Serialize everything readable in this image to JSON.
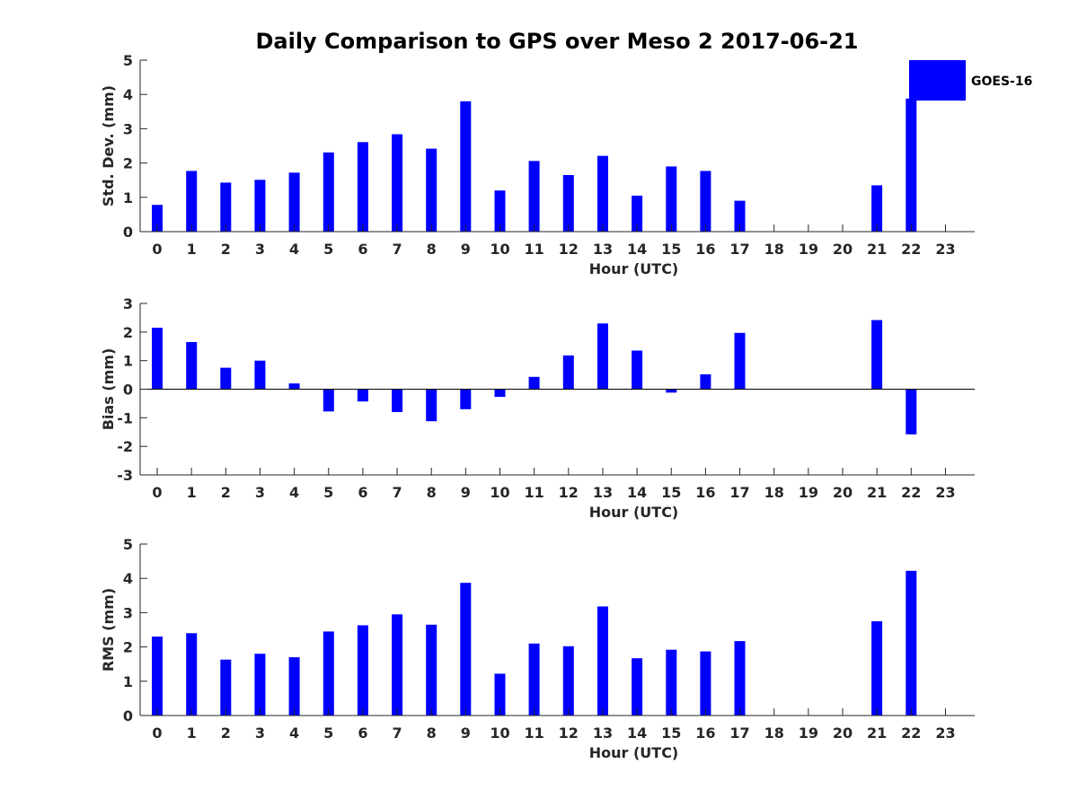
{
  "title": "Daily Comparison to GPS over Meso 2 2017-06-21",
  "legend": {
    "label": "GOES-16",
    "position": "top-right"
  },
  "colors": {
    "bar": "#0000ff",
    "axis": "#262626",
    "zero_line": "#000000"
  },
  "chart_data": [
    {
      "type": "bar",
      "xlabel": "Hour (UTC)",
      "ylabel": "Std. Dev. (mm)",
      "categories": [
        "0",
        "1",
        "2",
        "3",
        "4",
        "5",
        "6",
        "7",
        "8",
        "9",
        "10",
        "11",
        "12",
        "13",
        "14",
        "15",
        "16",
        "17",
        "18",
        "19",
        "20",
        "21",
        "22",
        "23"
      ],
      "ylim": [
        0,
        5
      ],
      "yticks": [
        0,
        1,
        2,
        3,
        4,
        5
      ],
      "series": [
        {
          "name": "GOES-16",
          "values": [
            0.78,
            1.77,
            1.43,
            1.51,
            1.72,
            2.31,
            2.61,
            2.84,
            2.42,
            3.8,
            1.2,
            2.06,
            1.65,
            2.21,
            1.05,
            1.9,
            1.77,
            0.9,
            null,
            null,
            null,
            1.35,
            3.88,
            null
          ]
        }
      ],
      "grid": false
    },
    {
      "type": "bar",
      "xlabel": "Hour (UTC)",
      "ylabel": "Bias (mm)",
      "categories": [
        "0",
        "1",
        "2",
        "3",
        "4",
        "5",
        "6",
        "7",
        "8",
        "9",
        "10",
        "11",
        "12",
        "13",
        "14",
        "15",
        "16",
        "17",
        "18",
        "19",
        "20",
        "21",
        "22",
        "23"
      ],
      "ylim": [
        -3,
        3
      ],
      "yticks": [
        -3,
        -2,
        -1,
        0,
        1,
        2,
        3
      ],
      "series": [
        {
          "name": "GOES-16",
          "values": [
            2.15,
            1.65,
            0.75,
            1.0,
            0.2,
            -0.78,
            -0.43,
            -0.8,
            -1.12,
            -0.7,
            -0.27,
            0.43,
            1.18,
            2.3,
            1.35,
            -0.12,
            0.52,
            1.97,
            null,
            null,
            null,
            2.42,
            -1.58,
            null
          ]
        }
      ],
      "grid": false
    },
    {
      "type": "bar",
      "xlabel": "Hour (UTC)",
      "ylabel": "RMS (mm)",
      "categories": [
        "0",
        "1",
        "2",
        "3",
        "4",
        "5",
        "6",
        "7",
        "8",
        "9",
        "10",
        "11",
        "12",
        "13",
        "14",
        "15",
        "16",
        "17",
        "18",
        "19",
        "20",
        "21",
        "22",
        "23"
      ],
      "ylim": [
        0,
        5
      ],
      "yticks": [
        0,
        1,
        2,
        3,
        4,
        5
      ],
      "series": [
        {
          "name": "GOES-16",
          "values": [
            2.3,
            2.4,
            1.63,
            1.8,
            1.7,
            2.45,
            2.63,
            2.95,
            2.65,
            3.87,
            1.22,
            2.1,
            2.02,
            3.18,
            1.67,
            1.92,
            1.87,
            2.17,
            null,
            null,
            null,
            2.75,
            4.22,
            null
          ]
        }
      ],
      "grid": false
    }
  ]
}
